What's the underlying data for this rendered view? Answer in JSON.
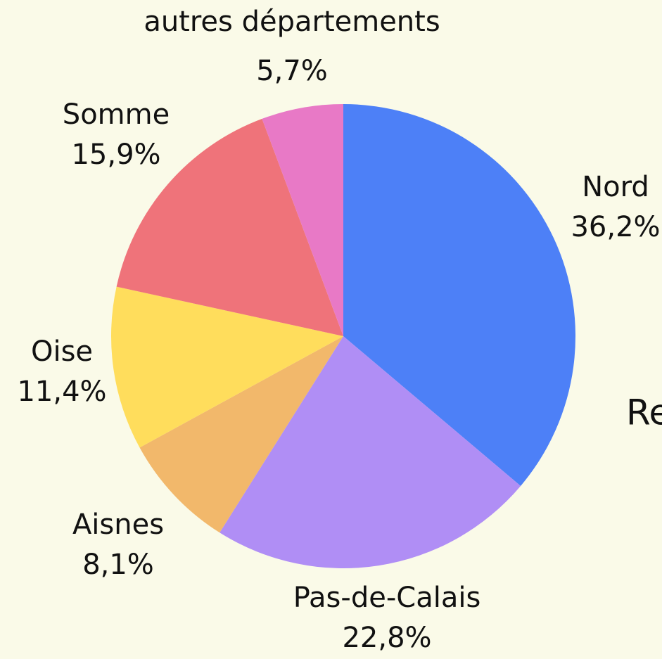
{
  "chart_data": {
    "type": "pie",
    "categories": [
      "Nord",
      "Pas-de-Calais",
      "Aisnes",
      "Oise",
      "Somme",
      "autres départements"
    ],
    "values": [
      36.2,
      22.8,
      8.1,
      11.4,
      15.9,
      5.7
    ],
    "value_labels": [
      "36,2%",
      "22,8%",
      "8,1%",
      "11,4%",
      "15,9%",
      "5,7%"
    ],
    "colors": [
      "#4d80f7",
      "#b08ef5",
      "#f2b86b",
      "#ffdd5c",
      "#ef737a",
      "#e879c6"
    ],
    "annotation": "Re"
  }
}
